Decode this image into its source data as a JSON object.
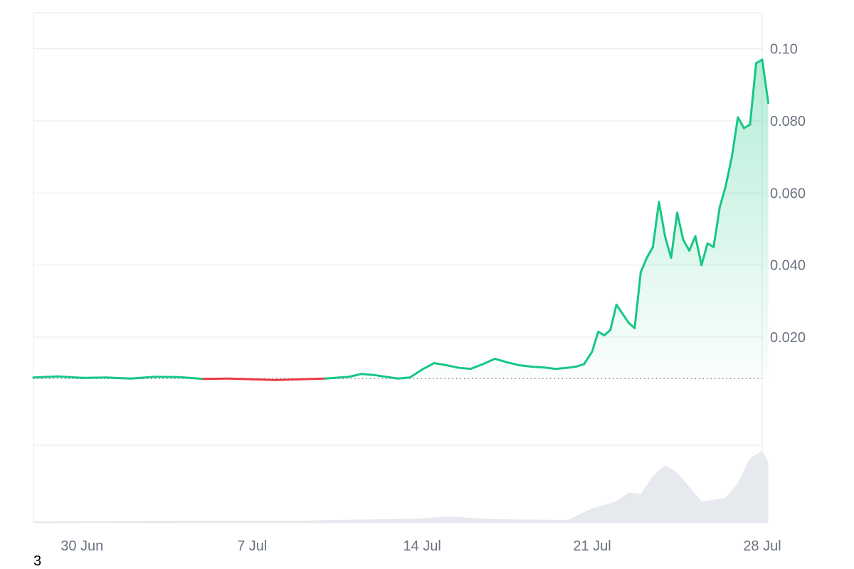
{
  "footnote": "3",
  "colors": {
    "up": "#16c784",
    "down": "#ea3943",
    "grid": "#e5e7eb",
    "volume": "#e6e9ee",
    "baseline": "#6b7280",
    "tick_text": "#6b7280"
  },
  "chart_data": {
    "type": "area",
    "title": "",
    "xlabel": "",
    "ylabel": "",
    "x_range": [
      "2024-06-28",
      "2024-07-28"
    ],
    "ylim": [
      -0.01,
      0.11
    ],
    "yticks": [
      0.02,
      0.04,
      0.06,
      0.08,
      0.1
    ],
    "ytick_labels": [
      "0.020",
      "0.040",
      "0.060",
      "0.080",
      "0.10"
    ],
    "xticks": [
      "2024-06-30",
      "2024-07-07",
      "2024-07-14",
      "2024-07-21",
      "2024-07-28"
    ],
    "xtick_labels": [
      "30 Jun",
      "7 Jul",
      "14 Jul",
      "21 Jul",
      "28 Jul"
    ],
    "baseline_price": 0.0085,
    "grid": true,
    "legend": "none",
    "series": [
      {
        "x": [
          "2024-06-28",
          "2024-06-29",
          "2024-06-30",
          "2024-07-01",
          "2024-07-02",
          "2024-07-03",
          "2024-07-04",
          "2024-07-05",
          "2024-07-06",
          "2024-07-07",
          "2024-07-08",
          "2024-07-09",
          "2024-07-10",
          "2024-07-11",
          "2024-07-11 12:00",
          "2024-07-12",
          "2024-07-13",
          "2024-07-13 12:00",
          "2024-07-14",
          "2024-07-14 12:00",
          "2024-07-15",
          "2024-07-15 12:00",
          "2024-07-16",
          "2024-07-16 12:00",
          "2024-07-17",
          "2024-07-17 12:00",
          "2024-07-18",
          "2024-07-18 12:00",
          "2024-07-19",
          "2024-07-19 12:00",
          "2024-07-20",
          "2024-07-20 08:00",
          "2024-07-20 16:00",
          "2024-07-21",
          "2024-07-21 06:00",
          "2024-07-21 12:00",
          "2024-07-21 18:00",
          "2024-07-22",
          "2024-07-22 06:00",
          "2024-07-22 12:00",
          "2024-07-22 18:00",
          "2024-07-23",
          "2024-07-23 06:00",
          "2024-07-23 12:00",
          "2024-07-23 18:00",
          "2024-07-24",
          "2024-07-24 06:00",
          "2024-07-24 12:00",
          "2024-07-24 18:00",
          "2024-07-25",
          "2024-07-25 06:00",
          "2024-07-25 12:00",
          "2024-07-25 18:00",
          "2024-07-26",
          "2024-07-26 06:00",
          "2024-07-26 12:00",
          "2024-07-26 18:00",
          "2024-07-27",
          "2024-07-27 06:00",
          "2024-07-27 12:00",
          "2024-07-27 18:00",
          "2024-07-28",
          "2024-07-28 06:00"
        ],
        "values": [
          0.0088,
          0.0091,
          0.0087,
          0.0088,
          0.0085,
          0.009,
          0.0089,
          0.0084,
          0.0085,
          0.0083,
          0.0081,
          0.0083,
          0.0085,
          0.009,
          0.0098,
          0.0095,
          0.0085,
          0.0088,
          0.011,
          0.0128,
          0.0122,
          0.0115,
          0.0112,
          0.0125,
          0.014,
          0.013,
          0.0122,
          0.0118,
          0.0116,
          0.0112,
          0.0115,
          0.0118,
          0.0125,
          0.016,
          0.0215,
          0.0205,
          0.022,
          0.029,
          0.0265,
          0.024,
          0.0225,
          0.038,
          0.042,
          0.045,
          0.0575,
          0.048,
          0.042,
          0.0545,
          0.047,
          0.044,
          0.048,
          0.04,
          0.046,
          0.045,
          0.056,
          0.062,
          0.07,
          0.081,
          0.078,
          0.079,
          0.096,
          0.097,
          0.085
        ]
      }
    ],
    "volume": {
      "x": [
        "2024-06-28",
        "2024-07-09",
        "2024-07-14",
        "2024-07-15",
        "2024-07-17",
        "2024-07-20",
        "2024-07-21",
        "2024-07-22",
        "2024-07-22 12:00",
        "2024-07-23",
        "2024-07-23 12:00",
        "2024-07-24",
        "2024-07-24 12:00",
        "2024-07-25",
        "2024-07-25 12:00",
        "2024-07-26",
        "2024-07-26 12:00",
        "2024-07-27",
        "2024-07-27 12:00",
        "2024-07-28",
        "2024-07-28 06:00"
      ],
      "values": [
        2,
        3,
        6,
        9,
        5,
        4,
        20,
        30,
        42,
        40,
        65,
        80,
        70,
        50,
        30,
        32,
        35,
        55,
        90,
        100,
        85
      ]
    }
  }
}
